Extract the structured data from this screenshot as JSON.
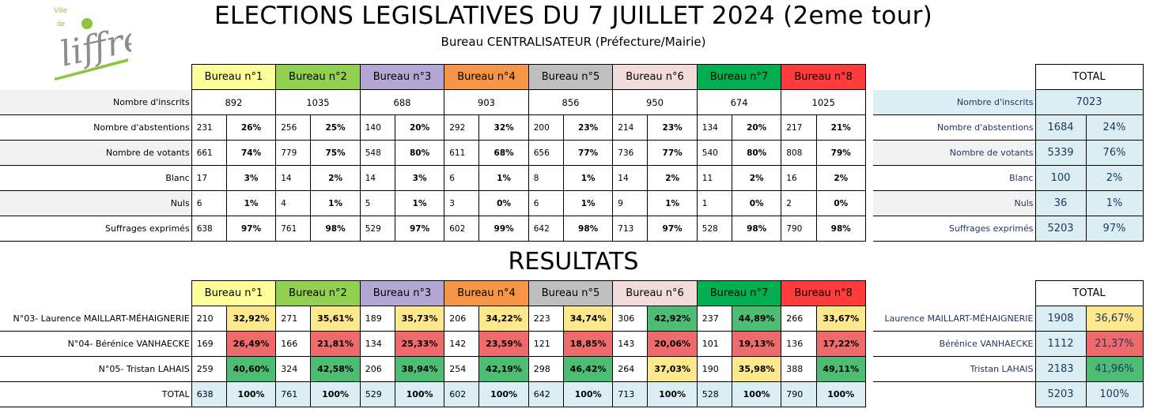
{
  "logo": {
    "ville": "Ville",
    "de": "de",
    "name": "liffré"
  },
  "title": "ELECTIONS LEGISLATIVES DU 7 JUILLET 2024 (2eme tour)",
  "subtitle": "Bureau CENTRALISATEUR (Préfecture/Mairie)",
  "results_title": "RESULTATS",
  "colors": {
    "bureau1": "#ffff99",
    "bureau2": "#92d050",
    "bureau3": "#b4a7d6",
    "bureau4": "#f79646",
    "bureau5": "#bfbfbf",
    "bureau6": "#f2dcdb",
    "bureau7": "#00b050",
    "bureau8": "#ff3b3b",
    "high": "#4dbd74",
    "mid": "#ffe88c",
    "low": "#ef6b6b"
  },
  "bureaux": [
    "Bureau n°1",
    "Bureau n°2",
    "Bureau n°3",
    "Bureau n°4",
    "Bureau n°5",
    "Bureau n°6",
    "Bureau n°7",
    "Bureau n°8"
  ],
  "participation": {
    "inscrits_label": "Nombre d'inscrits",
    "inscrits": [
      "892",
      "1035",
      "688",
      "903",
      "856",
      "950",
      "674",
      "1025"
    ],
    "rows": [
      {
        "label": "Nombre d'abstentions",
        "values": [
          [
            "231",
            "26%"
          ],
          [
            "256",
            "25%"
          ],
          [
            "140",
            "20%"
          ],
          [
            "292",
            "32%"
          ],
          [
            "200",
            "23%"
          ],
          [
            "214",
            "23%"
          ],
          [
            "134",
            "20%"
          ],
          [
            "217",
            "21%"
          ]
        ]
      },
      {
        "label": "Nombre de votants",
        "values": [
          [
            "661",
            "74%"
          ],
          [
            "779",
            "75%"
          ],
          [
            "548",
            "80%"
          ],
          [
            "611",
            "68%"
          ],
          [
            "656",
            "77%"
          ],
          [
            "736",
            "77%"
          ],
          [
            "540",
            "80%"
          ],
          [
            "808",
            "79%"
          ]
        ]
      },
      {
        "label": "Blanc",
        "values": [
          [
            "17",
            "3%"
          ],
          [
            "14",
            "2%"
          ],
          [
            "14",
            "3%"
          ],
          [
            "6",
            "1%"
          ],
          [
            "8",
            "1%"
          ],
          [
            "14",
            "2%"
          ],
          [
            "11",
            "2%"
          ],
          [
            "16",
            "2%"
          ]
        ]
      },
      {
        "label": "Nuls",
        "values": [
          [
            "6",
            "1%"
          ],
          [
            "4",
            "1%"
          ],
          [
            "5",
            "1%"
          ],
          [
            "3",
            "0%"
          ],
          [
            "6",
            "1%"
          ],
          [
            "9",
            "1%"
          ],
          [
            "1",
            "0%"
          ],
          [
            "2",
            "0%"
          ]
        ]
      },
      {
        "label": "Suffrages exprimés",
        "values": [
          [
            "638",
            "97%"
          ],
          [
            "761",
            "98%"
          ],
          [
            "529",
            "97%"
          ],
          [
            "602",
            "99%"
          ],
          [
            "642",
            "98%"
          ],
          [
            "713",
            "97%"
          ],
          [
            "528",
            "98%"
          ],
          [
            "790",
            "98%"
          ]
        ]
      }
    ]
  },
  "participation_total": {
    "header": "TOTAL",
    "inscrits_label": "Nombre d'inscrits",
    "inscrits": "7023",
    "rows": [
      {
        "label": "Nombre d'abstentions",
        "value": "1684",
        "pct": "24%"
      },
      {
        "label": "Nombre de votants",
        "value": "5339",
        "pct": "76%"
      },
      {
        "label": "Blanc",
        "value": "100",
        "pct": "2%"
      },
      {
        "label": "Nuls",
        "value": "36",
        "pct": "1%"
      },
      {
        "label": "Suffrages exprimés",
        "value": "5203",
        "pct": "97%"
      }
    ]
  },
  "results": {
    "rows": [
      {
        "label": "N°03- Laurence MAILLART-MÉHAIGNERIE",
        "values": [
          [
            "210",
            "32,92%"
          ],
          [
            "271",
            "35,61%"
          ],
          [
            "189",
            "35,73%"
          ],
          [
            "206",
            "34,22%"
          ],
          [
            "223",
            "34,74%"
          ],
          [
            "306",
            "42,92%"
          ],
          [
            "237",
            "44,89%"
          ],
          [
            "266",
            "33,67%"
          ]
        ],
        "levels": [
          "mid",
          "mid",
          "mid",
          "mid",
          "mid",
          "high",
          "high",
          "mid"
        ]
      },
      {
        "label": "N°04- Bérénice VANHAECKE",
        "values": [
          [
            "169",
            "26,49%"
          ],
          [
            "166",
            "21,81%"
          ],
          [
            "134",
            "25,33%"
          ],
          [
            "142",
            "23,59%"
          ],
          [
            "121",
            "18,85%"
          ],
          [
            "143",
            "20,06%"
          ],
          [
            "101",
            "19,13%"
          ],
          [
            "136",
            "17,22%"
          ]
        ],
        "levels": [
          "low",
          "low",
          "low",
          "low",
          "low",
          "low",
          "low",
          "low"
        ]
      },
      {
        "label": "N°05- Tristan LAHAIS",
        "values": [
          [
            "259",
            "40,60%"
          ],
          [
            "324",
            "42,58%"
          ],
          [
            "206",
            "38,94%"
          ],
          [
            "254",
            "42,19%"
          ],
          [
            "298",
            "46,42%"
          ],
          [
            "264",
            "37,03%"
          ],
          [
            "190",
            "35,98%"
          ],
          [
            "388",
            "49,11%"
          ]
        ],
        "levels": [
          "high",
          "high",
          "high",
          "high",
          "high",
          "mid",
          "mid",
          "high"
        ]
      }
    ],
    "total_label": "TOTAL",
    "totals": [
      [
        "638",
        "100%"
      ],
      [
        "761",
        "100%"
      ],
      [
        "529",
        "100%"
      ],
      [
        "602",
        "100%"
      ],
      [
        "642",
        "100%"
      ],
      [
        "713",
        "100%"
      ],
      [
        "528",
        "100%"
      ],
      [
        "790",
        "100%"
      ]
    ]
  },
  "results_total": {
    "header": "TOTAL",
    "rows": [
      {
        "label": "Laurence MAILLART-MÉHAIGNERIE",
        "value": "1908",
        "pct": "36,67%",
        "level": "mid"
      },
      {
        "label": "Bérénice VANHAECKE",
        "value": "1112",
        "pct": "21,37%",
        "level": "low"
      },
      {
        "label": "Tristan LAHAIS",
        "value": "2183",
        "pct": "41,96%",
        "level": "high"
      }
    ],
    "total_value": "5203",
    "total_pct": "100%"
  }
}
